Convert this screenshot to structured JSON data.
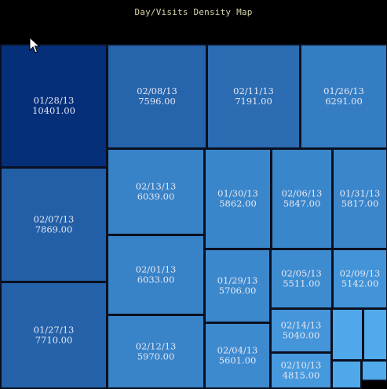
{
  "title": "Day/Visits Density Map",
  "cursor_icon": "mouse-pointer-icon",
  "colors": {
    "background": "#000000",
    "title": "#d8d4a8",
    "label": "#e4e8f4",
    "cell_border": "#0a1020",
    "scale_dark": "#062f7a",
    "scale_light": "#4fa8ea"
  },
  "chart_data": {
    "type": "treemap",
    "title": "Day/Visits Density Map",
    "value_format": "2 decimals",
    "items": [
      {
        "label": "01/28/13",
        "value": 10401.0
      },
      {
        "label": "02/07/13",
        "value": 7869.0
      },
      {
        "label": "01/27/13",
        "value": 7710.0
      },
      {
        "label": "02/08/13",
        "value": 7596.0
      },
      {
        "label": "02/11/13",
        "value": 7191.0
      },
      {
        "label": "01/26/13",
        "value": 6291.0
      },
      {
        "label": "02/13/13",
        "value": 6039.0
      },
      {
        "label": "02/01/13",
        "value": 6033.0
      },
      {
        "label": "02/12/13",
        "value": 5970.0
      },
      {
        "label": "01/30/13",
        "value": 5862.0
      },
      {
        "label": "02/06/13",
        "value": 5847.0
      },
      {
        "label": "01/31/13",
        "value": 5817.0
      },
      {
        "label": "01/29/13",
        "value": 5706.0
      },
      {
        "label": "02/04/13",
        "value": 5601.0
      },
      {
        "label": "02/05/13",
        "value": 5511.0
      },
      {
        "label": "02/09/13",
        "value": 5142.0
      },
      {
        "label": "02/14/13",
        "value": 5040.0
      },
      {
        "label": "02/10/13",
        "value": 4815.0
      },
      {
        "label": "",
        "value": null
      },
      {
        "label": "",
        "value": null
      },
      {
        "label": "",
        "value": null
      },
      {
        "label": "",
        "value": null
      }
    ]
  }
}
